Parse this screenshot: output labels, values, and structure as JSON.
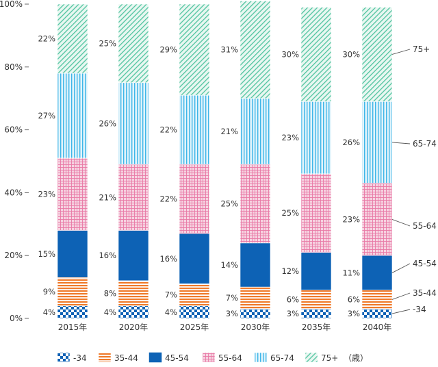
{
  "chart_data": {
    "type": "bar",
    "stacked": true,
    "categories": [
      "2015年",
      "2020年",
      "2025年",
      "2030年",
      "2035年",
      "2040年"
    ],
    "series": [
      {
        "name": "-34",
        "values": [
          4,
          4,
          4,
          3,
          3,
          3
        ],
        "labels": [
          "4%",
          "4%",
          "4%",
          "3%",
          "3%",
          "3%"
        ],
        "fill": "check",
        "color": "#0d62b5"
      },
      {
        "name": "35-44",
        "values": [
          9,
          8,
          7,
          7,
          6,
          6
        ],
        "labels": [
          "9%",
          "8%",
          "7%",
          "7%",
          "6%",
          "6%"
        ],
        "fill": "hstripe",
        "color": "#ef7b2c"
      },
      {
        "name": "45-54",
        "values": [
          15,
          16,
          16,
          14,
          12,
          11
        ],
        "labels": [
          "15%",
          "16%",
          "16%",
          "14%",
          "12%",
          "11%"
        ],
        "fill": "solid",
        "color": "#0d62b5"
      },
      {
        "name": "55-64",
        "values": [
          23,
          21,
          22,
          25,
          25,
          23
        ],
        "labels": [
          "23%",
          "21%",
          "22%",
          "25%",
          "25%",
          "23%"
        ],
        "fill": "grid",
        "color": "#e97aa6"
      },
      {
        "name": "65-74",
        "values": [
          27,
          26,
          22,
          21,
          23,
          26
        ],
        "labels": [
          "27%",
          "26%",
          "22%",
          "21%",
          "23%",
          "26%"
        ],
        "fill": "vstripe",
        "color": "#3fb6e8"
      },
      {
        "name": "75+",
        "values": [
          22,
          25,
          29,
          31,
          30,
          30
        ],
        "labels": [
          "22%",
          "25%",
          "29%",
          "31%",
          "30%",
          "30%"
        ],
        "fill": "diag",
        "color": "#4fc39f"
      }
    ],
    "ylim": [
      0,
      100
    ],
    "y_ticks": [
      "0%",
      "20%",
      "40%",
      "60%",
      "80%",
      "100%"
    ],
    "y_tick_values": [
      0,
      20,
      40,
      60,
      80,
      100
    ],
    "legend": {
      "position": "bottom",
      "items": [
        "-34",
        "35-44",
        "45-54",
        "55-64",
        "65-74",
        "75+"
      ],
      "unit": "（歳）"
    },
    "right_labels": [
      "75+",
      "65-74",
      "55-64",
      "45-54",
      "35-44",
      "-34"
    ]
  }
}
